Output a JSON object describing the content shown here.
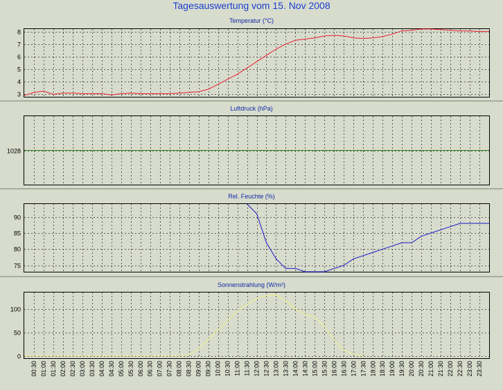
{
  "title": "Tagesauswertung vom 15. Nov 2008",
  "colors": {
    "background": "#d8dccd",
    "plot_background": "#d8dccd",
    "grid": "#5c5c5c",
    "title": "#1a3fd1",
    "panel_title": "#0f2aa8",
    "separator": "#a9ad9e"
  },
  "time_labels": [
    "00:30",
    "01:00",
    "01:30",
    "02:00",
    "02:30",
    "03:00",
    "03:30",
    "04:00",
    "04:30",
    "05:00",
    "05:30",
    "06:00",
    "06:30",
    "07:00",
    "07:30",
    "08:00",
    "08:30",
    "09:00",
    "09:30",
    "10:00",
    "10:30",
    "11:00",
    "11:30",
    "12:00",
    "12:30",
    "13:00",
    "13:30",
    "14:00",
    "14:30",
    "15:00",
    "15:30",
    "16:00",
    "16:30",
    "17:00",
    "17:30",
    "18:00",
    "18:30",
    "19:00",
    "19:30",
    "20:00",
    "20:30",
    "21:00",
    "21:30",
    "22:00",
    "22:30",
    "23:00",
    "23:30"
  ],
  "chart_data": [
    {
      "type": "line",
      "title": "Temperatur (°C)",
      "color": "#e8202a",
      "ylim": [
        2.8,
        8.2
      ],
      "yticks": [
        3,
        4,
        5,
        6,
        7,
        8
      ],
      "x_range": [
        "00:00",
        "24:00"
      ],
      "grid": true,
      "x": [
        "00:00",
        "00:30",
        "01:00",
        "01:30",
        "02:00",
        "02:30",
        "03:00",
        "03:30",
        "04:00",
        "04:30",
        "05:00",
        "05:30",
        "06:00",
        "06:30",
        "07:00",
        "07:30",
        "08:00",
        "08:30",
        "09:00",
        "09:30",
        "10:00",
        "10:30",
        "11:00",
        "11:30",
        "12:00",
        "12:30",
        "13:00",
        "13:30",
        "14:00",
        "14:30",
        "15:00",
        "15:30",
        "16:00",
        "16:30",
        "17:00",
        "17:30",
        "18:00",
        "18:30",
        "19:00",
        "19:30",
        "20:00",
        "20:30",
        "21:00",
        "21:30",
        "22:00",
        "22:30",
        "23:00",
        "23:30",
        "24:00"
      ],
      "values": [
        2.9,
        3.15,
        3.25,
        3.0,
        3.1,
        3.1,
        3.05,
        3.05,
        3.05,
        2.95,
        3.05,
        3.1,
        3.05,
        3.05,
        3.05,
        3.05,
        3.1,
        3.15,
        3.2,
        3.4,
        3.8,
        4.2,
        4.6,
        5.1,
        5.6,
        6.1,
        6.6,
        7.0,
        7.3,
        7.4,
        7.5,
        7.65,
        7.7,
        7.65,
        7.5,
        7.45,
        7.5,
        7.6,
        7.8,
        8.05,
        8.1,
        8.2,
        8.2,
        8.15,
        8.1,
        8.05,
        8.05,
        8.0,
        8.0
      ]
    },
    {
      "type": "line",
      "title": "Luftdruck (hPa)",
      "color": "#2a8a1e",
      "yticks": [
        1028
      ],
      "x_range": [
        "00:00",
        "24:00"
      ],
      "grid": true,
      "x": [
        "00:00",
        "24:00"
      ],
      "values": [
        1028,
        1028
      ]
    },
    {
      "type": "line",
      "title": "Rel. Feuchte (%)",
      "color": "#1616c8",
      "ylim": [
        73,
        94
      ],
      "yticks": [
        75,
        80,
        85,
        90
      ],
      "x_range": [
        "00:00",
        "24:00"
      ],
      "grid": true,
      "x": [
        "11:30",
        "12:00",
        "12:30",
        "13:00",
        "13:30",
        "14:00",
        "14:30",
        "15:00",
        "15:30",
        "16:00",
        "16:30",
        "17:00",
        "17:30",
        "18:00",
        "18:30",
        "19:00",
        "19:30",
        "20:00",
        "20:30",
        "21:00",
        "21:30",
        "22:00",
        "22:30",
        "23:00",
        "23:30",
        "24:00"
      ],
      "values": [
        94,
        91,
        82,
        77,
        74,
        74,
        73,
        73,
        73,
        74,
        75,
        77,
        78,
        79,
        80,
        81,
        82,
        82,
        84,
        85,
        86,
        87,
        88,
        88,
        88,
        88
      ]
    },
    {
      "type": "line",
      "title": "Sonnenstrahlung (W/m²)",
      "color": "#f2ef88",
      "ylim": [
        -5,
        135
      ],
      "yticks": [
        0,
        50,
        100
      ],
      "x_range": [
        "00:00",
        "24:00"
      ],
      "grid": true,
      "x": [
        "00:00",
        "08:00",
        "08:30",
        "09:00",
        "09:30",
        "10:00",
        "10:30",
        "11:00",
        "11:30",
        "12:00",
        "12:30",
        "13:00",
        "13:30",
        "14:00",
        "14:30",
        "15:00",
        "15:30",
        "16:00",
        "16:30",
        "17:00",
        "17:30"
      ],
      "values": [
        0,
        0,
        2,
        15,
        35,
        55,
        75,
        95,
        110,
        122,
        128,
        130,
        118,
        100,
        88,
        82,
        62,
        35,
        12,
        3,
        0
      ]
    }
  ]
}
